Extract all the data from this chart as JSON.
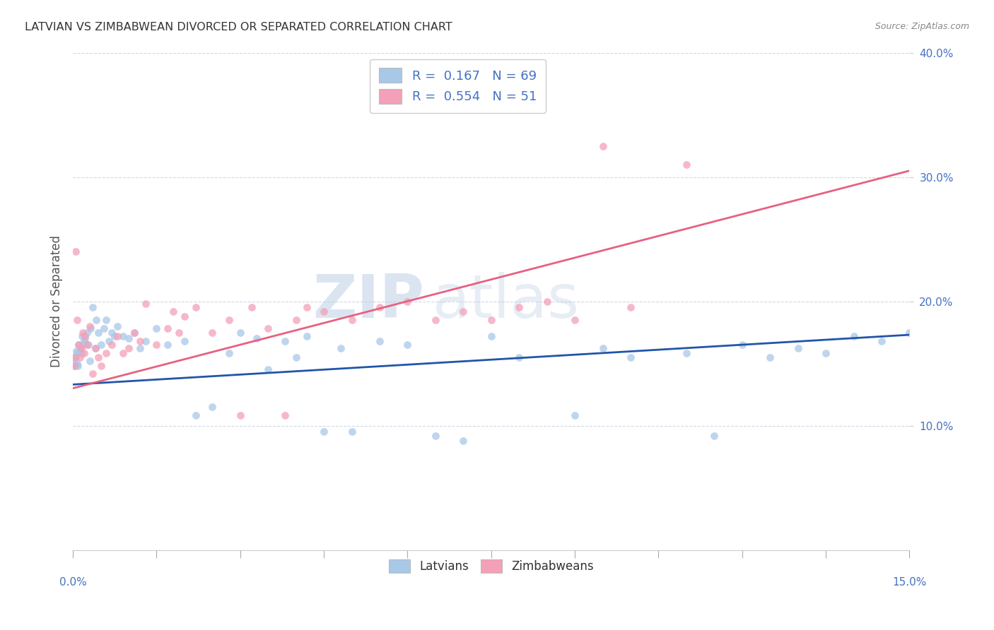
{
  "title": "LATVIAN VS ZIMBABWEAN DIVORCED OR SEPARATED CORRELATION CHART",
  "source": "Source: ZipAtlas.com",
  "ylabel": "Divorced or Separated",
  "legend_latvians": "Latvians",
  "legend_zimbabweans": "Zimbabweans",
  "latvian_R": 0.167,
  "latvian_N": 69,
  "zimbabwean_R": 0.554,
  "zimbabwean_N": 51,
  "xlim": [
    0.0,
    0.15
  ],
  "ylim": [
    0.0,
    0.4
  ],
  "xtick_left_label": "0.0%",
  "xtick_right_label": "15.0%",
  "ytick_vals": [
    0.1,
    0.2,
    0.3,
    0.4
  ],
  "ytick_labels": [
    "10.0%",
    "20.0%",
    "30.0%",
    "40.0%"
  ],
  "latvian_color": "#a8c8e8",
  "zimbabwean_color": "#f4a0b8",
  "latvian_line_color": "#2255aa",
  "zimbabwean_line_color": "#e86080",
  "watermark_zip": "ZIP",
  "watermark_atlas": "atlas",
  "lv_line_x": [
    0.0,
    0.15
  ],
  "lv_line_y": [
    0.133,
    0.173
  ],
  "zw_line_x": [
    0.0,
    0.15
  ],
  "zw_line_y": [
    0.13,
    0.305
  ],
  "latvian_x": [
    0.0002,
    0.0003,
    0.0004,
    0.0005,
    0.0006,
    0.0007,
    0.0008,
    0.0009,
    0.001,
    0.0012,
    0.0013,
    0.0015,
    0.0016,
    0.0018,
    0.002,
    0.0022,
    0.0025,
    0.0028,
    0.003,
    0.0032,
    0.0035,
    0.004,
    0.0042,
    0.0045,
    0.005,
    0.0055,
    0.006,
    0.0065,
    0.007,
    0.0075,
    0.008,
    0.009,
    0.01,
    0.011,
    0.012,
    0.013,
    0.015,
    0.017,
    0.02,
    0.022,
    0.025,
    0.028,
    0.03,
    0.033,
    0.035,
    0.038,
    0.04,
    0.042,
    0.045,
    0.048,
    0.05,
    0.055,
    0.06,
    0.065,
    0.07,
    0.075,
    0.08,
    0.09,
    0.095,
    0.1,
    0.11,
    0.115,
    0.12,
    0.125,
    0.13,
    0.135,
    0.14,
    0.145,
    0.15
  ],
  "latvian_y": [
    0.155,
    0.15,
    0.148,
    0.155,
    0.16,
    0.15,
    0.158,
    0.148,
    0.165,
    0.16,
    0.162,
    0.158,
    0.172,
    0.165,
    0.168,
    0.17,
    0.175,
    0.165,
    0.152,
    0.178,
    0.195,
    0.162,
    0.185,
    0.175,
    0.165,
    0.178,
    0.185,
    0.168,
    0.175,
    0.172,
    0.18,
    0.172,
    0.17,
    0.175,
    0.162,
    0.168,
    0.178,
    0.165,
    0.168,
    0.108,
    0.115,
    0.158,
    0.175,
    0.17,
    0.145,
    0.168,
    0.155,
    0.172,
    0.095,
    0.162,
    0.095,
    0.168,
    0.165,
    0.092,
    0.088,
    0.172,
    0.155,
    0.108,
    0.162,
    0.155,
    0.158,
    0.092,
    0.165,
    0.155,
    0.162,
    0.158,
    0.172,
    0.168,
    0.175
  ],
  "zimbabwean_x": [
    0.0002,
    0.0003,
    0.0005,
    0.0007,
    0.001,
    0.0012,
    0.0015,
    0.0018,
    0.002,
    0.0022,
    0.0025,
    0.003,
    0.0035,
    0.004,
    0.0045,
    0.005,
    0.006,
    0.007,
    0.008,
    0.009,
    0.01,
    0.011,
    0.012,
    0.013,
    0.015,
    0.017,
    0.018,
    0.019,
    0.02,
    0.022,
    0.025,
    0.028,
    0.03,
    0.032,
    0.035,
    0.038,
    0.04,
    0.042,
    0.045,
    0.05,
    0.055,
    0.06,
    0.065,
    0.07,
    0.075,
    0.08,
    0.085,
    0.09,
    0.095,
    0.1,
    0.11
  ],
  "zimbabwean_y": [
    0.155,
    0.148,
    0.24,
    0.185,
    0.165,
    0.155,
    0.162,
    0.175,
    0.158,
    0.172,
    0.165,
    0.18,
    0.142,
    0.162,
    0.155,
    0.148,
    0.158,
    0.165,
    0.172,
    0.158,
    0.162,
    0.175,
    0.168,
    0.198,
    0.165,
    0.178,
    0.192,
    0.175,
    0.188,
    0.195,
    0.175,
    0.185,
    0.108,
    0.195,
    0.178,
    0.108,
    0.185,
    0.195,
    0.192,
    0.185,
    0.195,
    0.2,
    0.185,
    0.192,
    0.185,
    0.195,
    0.2,
    0.185,
    0.325,
    0.195,
    0.31
  ]
}
